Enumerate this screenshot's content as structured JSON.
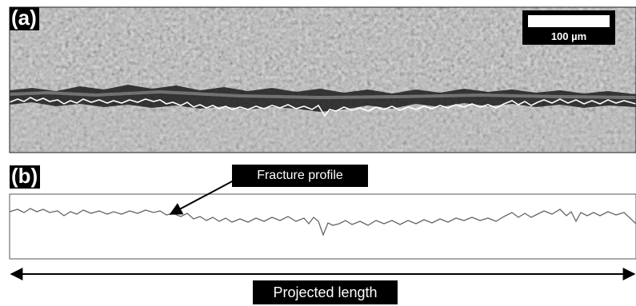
{
  "panel_a": {
    "label": "(a)"
  },
  "panel_b": {
    "label": "(b)"
  },
  "scale_bar": {
    "text": "100 µm"
  },
  "annotations": {
    "fracture_profile": "Fracture profile",
    "projected_length": "Projected length"
  },
  "colors": {
    "micrograph_base": "#a6a6a6",
    "crack_dark": "#1a1a1a",
    "profile_line": "#555555",
    "label_bg": "#000000",
    "label_text": "#ffffff"
  }
}
